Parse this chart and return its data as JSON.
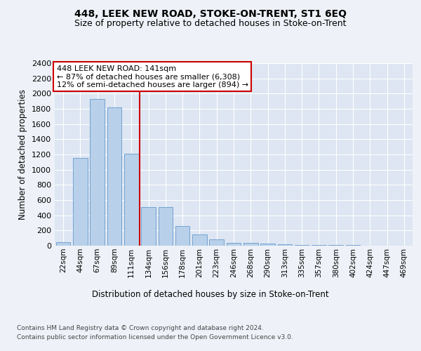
{
  "title": "448, LEEK NEW ROAD, STOKE-ON-TRENT, ST1 6EQ",
  "subtitle": "Size of property relative to detached houses in Stoke-on-Trent",
  "xlabel": "Distribution of detached houses by size in Stoke-on-Trent",
  "ylabel": "Number of detached properties",
  "footer_line1": "Contains HM Land Registry data © Crown copyright and database right 2024.",
  "footer_line2": "Contains public sector information licensed under the Open Government Licence v3.0.",
  "categories": [
    "22sqm",
    "44sqm",
    "67sqm",
    "89sqm",
    "111sqm",
    "134sqm",
    "156sqm",
    "178sqm",
    "201sqm",
    "223sqm",
    "246sqm",
    "268sqm",
    "290sqm",
    "313sqm",
    "335sqm",
    "357sqm",
    "380sqm",
    "402sqm",
    "424sqm",
    "447sqm",
    "469sqm"
  ],
  "values": [
    50,
    1150,
    1930,
    1820,
    1210,
    510,
    510,
    260,
    150,
    80,
    40,
    35,
    28,
    15,
    12,
    8,
    5,
    5,
    3,
    2,
    2
  ],
  "bar_color": "#b8d0ea",
  "bar_edge_color": "#6699cc",
  "vline_index": 4.5,
  "ylim": [
    0,
    2400
  ],
  "yticks": [
    0,
    200,
    400,
    600,
    800,
    1000,
    1200,
    1400,
    1600,
    1800,
    2000,
    2200,
    2400
  ],
  "bg_color": "#eef2f8",
  "plot_bg_color": "#dde6f2",
  "grid_color": "#ffffff",
  "annotation_line1": "448 LEEK NEW ROAD: 141sqm",
  "annotation_line2": "← 87% of detached houses are smaller (6,308)",
  "annotation_line3": "12% of semi-detached houses are larger (894) →",
  "annotation_box_color": "#ffffff",
  "annotation_box_edge": "#cc0000",
  "vline_color": "#cc0000",
  "title_fontsize": 10,
  "subtitle_fontsize": 9
}
